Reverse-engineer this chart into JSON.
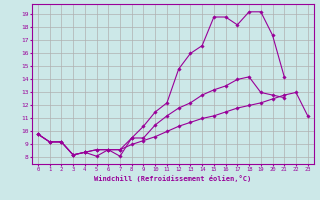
{
  "x": [
    0,
    1,
    2,
    3,
    4,
    5,
    6,
    7,
    8,
    9,
    10,
    11,
    12,
    13,
    14,
    15,
    16,
    17,
    18,
    19,
    20,
    21,
    22,
    23
  ],
  "line1": [
    9.8,
    9.2,
    9.2,
    8.2,
    8.4,
    8.1,
    8.6,
    8.1,
    9.5,
    10.4,
    11.5,
    12.2,
    14.8,
    16.0,
    16.6,
    18.8,
    18.8,
    18.2,
    19.2,
    19.2,
    17.4,
    14.2,
    null,
    null
  ],
  "line2": [
    9.8,
    9.2,
    9.2,
    8.2,
    8.4,
    8.6,
    8.6,
    8.6,
    9.5,
    9.5,
    10.5,
    11.2,
    11.8,
    12.2,
    12.8,
    13.2,
    13.5,
    14.0,
    14.2,
    13.0,
    12.8,
    12.6,
    null,
    null
  ],
  "line3": [
    9.8,
    9.2,
    9.2,
    8.2,
    8.4,
    8.6,
    8.6,
    8.6,
    9.0,
    9.3,
    9.6,
    10.0,
    10.4,
    10.7,
    11.0,
    11.2,
    11.5,
    11.8,
    12.0,
    12.2,
    12.5,
    12.8,
    13.0,
    11.2
  ],
  "color": "#990099",
  "bg_color": "#cce8e8",
  "grid_color": "#b0b0b0",
  "xlabel": "Windchill (Refroidissement éolien,°C)",
  "ylim": [
    7.5,
    19.8
  ],
  "xlim": [
    -0.5,
    23.5
  ],
  "yticks": [
    8,
    9,
    10,
    11,
    12,
    13,
    14,
    15,
    16,
    17,
    18,
    19
  ],
  "xticks": [
    0,
    1,
    2,
    3,
    4,
    5,
    6,
    7,
    8,
    9,
    10,
    11,
    12,
    13,
    14,
    15,
    16,
    17,
    18,
    19,
    20,
    21,
    22,
    23
  ]
}
